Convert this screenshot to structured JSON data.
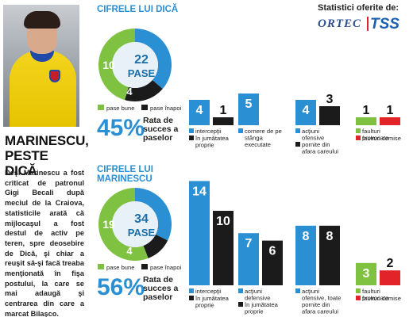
{
  "headline": "MARINESCU,\nPESTE DICĂ",
  "article": "Deşi Marinescu a fost criticat de patronul Gigi Becali după meciul de la Craiova, statisticile arată că mijlocaşul a fost destul de activ pe teren, spre deosebire de Dică, şi chiar a reuşit să-şi facă treaba menţionată în fişa postului, la care se mai adaugă şi centrarea din care a marcat Bilaşco.",
  "sponsor": {
    "label": "Statistici oferite de:",
    "ortec": "ORTEC",
    "tss": "TSS"
  },
  "colors": {
    "blue": "#2b8fd3",
    "dark": "#1b1b1b",
    "green": "#7fc241",
    "red": "#e2242a",
    "donut_inner": "#e8f1f8"
  },
  "chart_data": [
    {
      "type": "pie",
      "title": "CIFRELE LUI DICĂ",
      "total": 22,
      "total_label": "PASE",
      "slices": [
        {
          "name": "pase bune",
          "value": 10,
          "color": "#7fc241"
        },
        {
          "name": "pase înapoi",
          "value": 4,
          "color": "#1b1b1b"
        }
      ],
      "success_rate": "45%",
      "success_label": "Rata de succes a paselor"
    },
    {
      "type": "bar",
      "title": "CIFRELE LUI DICĂ",
      "pairs": [
        {
          "a": {
            "label": "intercepţii",
            "value": 4
          },
          "b": {
            "label": "în jumătatea proprie",
            "value": 1
          }
        },
        {
          "a": {
            "label": "cornere de pe stânga executate",
            "value": 5
          },
          "b": null
        },
        {
          "a": {
            "label": "acţiuni ofensive",
            "value": 4
          },
          "b": {
            "label": "pornite din afara careului",
            "value": 3
          }
        },
        {
          "a": {
            "label": "faulturi provocate",
            "value": 1
          },
          "b": {
            "label": "faulturi comise",
            "value": 1
          }
        }
      ]
    },
    {
      "type": "pie",
      "title": "CIFRELE LUI MARINESCU",
      "total": 34,
      "total_label": "PASE",
      "slices": [
        {
          "name": "pase bune",
          "value": 19,
          "color": "#7fc241"
        },
        {
          "name": "pase înapoi",
          "value": 4,
          "color": "#1b1b1b"
        }
      ],
      "success_rate": "56%",
      "success_label": "Rata de succes a paselor"
    },
    {
      "type": "bar",
      "title": "CIFRELE LUI MARINESCU",
      "pairs": [
        {
          "a": {
            "label": "intercepţii",
            "value": 14
          },
          "b": {
            "label": "în jumătatea proprie",
            "value": 10
          }
        },
        {
          "a": {
            "label": "acţiuni defensive",
            "value": 7
          },
          "b": {
            "label": "în jumătatea proprie",
            "value": 6
          }
        },
        {
          "a": {
            "label": "acţiuni ofensive, toate pornite din afara careului",
            "value": 8
          },
          "b": {
            "label": "",
            "value": 8
          }
        },
        {
          "a": {
            "label": "faulturi provocate",
            "value": 3
          },
          "b": {
            "label": "faulturi comise",
            "value": 2
          }
        }
      ]
    }
  ]
}
